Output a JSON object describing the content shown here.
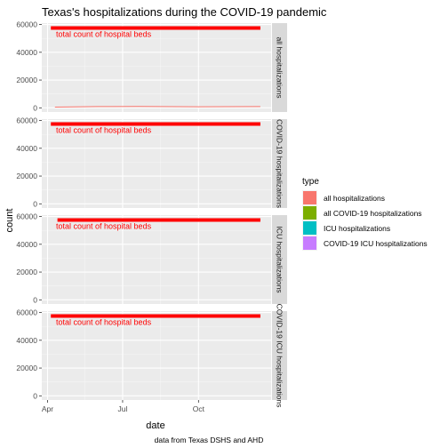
{
  "chart_data": {
    "type": "line",
    "title": "Texas's hospitalizations during the COVID-19 pandemic",
    "xlabel": "date",
    "ylabel": "count",
    "caption": "data from Texas DSHS and AHD",
    "x_ticks": [
      {
        "label": "Apr",
        "date": "2020-04-01"
      },
      {
        "label": "Jul",
        "date": "2020-07-01"
      },
      {
        "label": "Oct",
        "date": "2020-10-01"
      }
    ],
    "x_range": [
      "2020-03-25",
      "2020-12-28"
    ],
    "y_ticks": [
      0,
      20000,
      40000,
      60000
    ],
    "ylim": [
      -3000,
      61000
    ],
    "legend_title": "type",
    "legend_position": "right",
    "grid": true,
    "annotation_text": "total count of hospital beds",
    "annotation_color": "#ff0000",
    "series": [
      {
        "name": "all hospitalizations",
        "color": "#f8766d",
        "strip": "all hospitalizations",
        "points": [
          [
            "2020-04-10",
            500
          ],
          [
            "2020-06-01",
            900
          ],
          [
            "2020-07-20",
            1000
          ],
          [
            "2020-10-01",
            800
          ],
          [
            "2020-12-15",
            900
          ]
        ],
        "beds": [
          [
            "2020-04-05",
            57500
          ],
          [
            "2020-12-15",
            57500
          ]
        ]
      },
      {
        "name": "all COVID-19 hospitalizations",
        "color": "#7cae00",
        "strip": "COVID-19 hospitalizations",
        "points": [],
        "beds": [
          [
            "2020-04-05",
            57500
          ],
          [
            "2020-12-15",
            57500
          ]
        ]
      },
      {
        "name": "ICU hospitalizations",
        "color": "#00bfc4",
        "strip": "ICU hospitalizations",
        "points": [],
        "beds": [
          [
            "2020-04-13",
            57500
          ],
          [
            "2020-12-15",
            57500
          ]
        ]
      },
      {
        "name": "COVID-19 ICU hospitalizations",
        "color": "#c77cff",
        "strip": "COVID-19 ICU hospitalizations",
        "points": [],
        "beds": [
          [
            "2020-04-05",
            57500
          ],
          [
            "2020-12-15",
            57500
          ]
        ]
      }
    ]
  }
}
